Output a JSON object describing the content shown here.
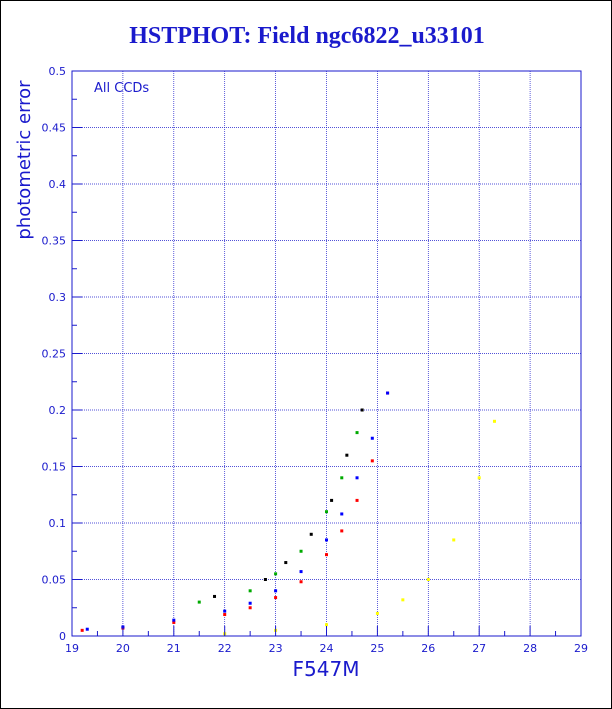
{
  "chart_data": {
    "type": "scatter",
    "title": "HSTPHOT: Field ngc6822_u33101",
    "xlabel": "F547M",
    "ylabel": "photometric error",
    "annotation": "All CCDs",
    "xlim": [
      19,
      29
    ],
    "ylim": [
      0,
      0.5
    ],
    "x_ticks": [
      "19",
      "20",
      "21",
      "22",
      "23",
      "24",
      "25",
      "26",
      "27",
      "28",
      "29"
    ],
    "y_ticks": [
      "0",
      "0.05",
      "0.1",
      "0.15",
      "0.2",
      "0.25",
      "0.3",
      "0.35",
      "0.4",
      "0.45",
      "0.5"
    ],
    "grid": true,
    "series": [
      {
        "color": "#ff0000",
        "x": [
          19.2,
          20.0,
          21.0,
          22.0,
          22.5,
          23.0,
          23.5,
          24.0,
          24.3,
          24.6,
          24.9,
          25.2
        ],
        "y": [
          0.005,
          0.007,
          0.012,
          0.019,
          0.025,
          0.034,
          0.048,
          0.072,
          0.093,
          0.12,
          0.155,
          0.215
        ]
      },
      {
        "color": "#0000ff",
        "x": [
          19.3,
          20.0,
          21.0,
          22.0,
          22.5,
          23.0,
          23.5,
          24.0,
          24.3,
          24.6,
          24.9,
          25.2
        ],
        "y": [
          0.006,
          0.008,
          0.014,
          0.022,
          0.029,
          0.04,
          0.057,
          0.085,
          0.108,
          0.14,
          0.175,
          0.215
        ]
      },
      {
        "color": "#00aa00",
        "x": [
          21.5,
          22.5,
          23.0,
          23.5,
          24.0,
          24.3,
          24.6
        ],
        "y": [
          0.03,
          0.04,
          0.055,
          0.075,
          0.11,
          0.14,
          0.18
        ]
      },
      {
        "color": "#000000",
        "x": [
          21.8,
          22.8,
          23.2,
          23.7,
          24.1,
          24.4,
          24.7
        ],
        "y": [
          0.035,
          0.05,
          0.065,
          0.09,
          0.12,
          0.16,
          0.2
        ]
      },
      {
        "color": "#ffff00",
        "x": [
          22.0,
          23.0,
          24.0,
          25.0,
          25.5,
          26.0,
          26.5,
          27.0,
          27.3
        ],
        "y": [
          0.002,
          0.005,
          0.01,
          0.02,
          0.032,
          0.05,
          0.085,
          0.14,
          0.19
        ]
      }
    ]
  }
}
